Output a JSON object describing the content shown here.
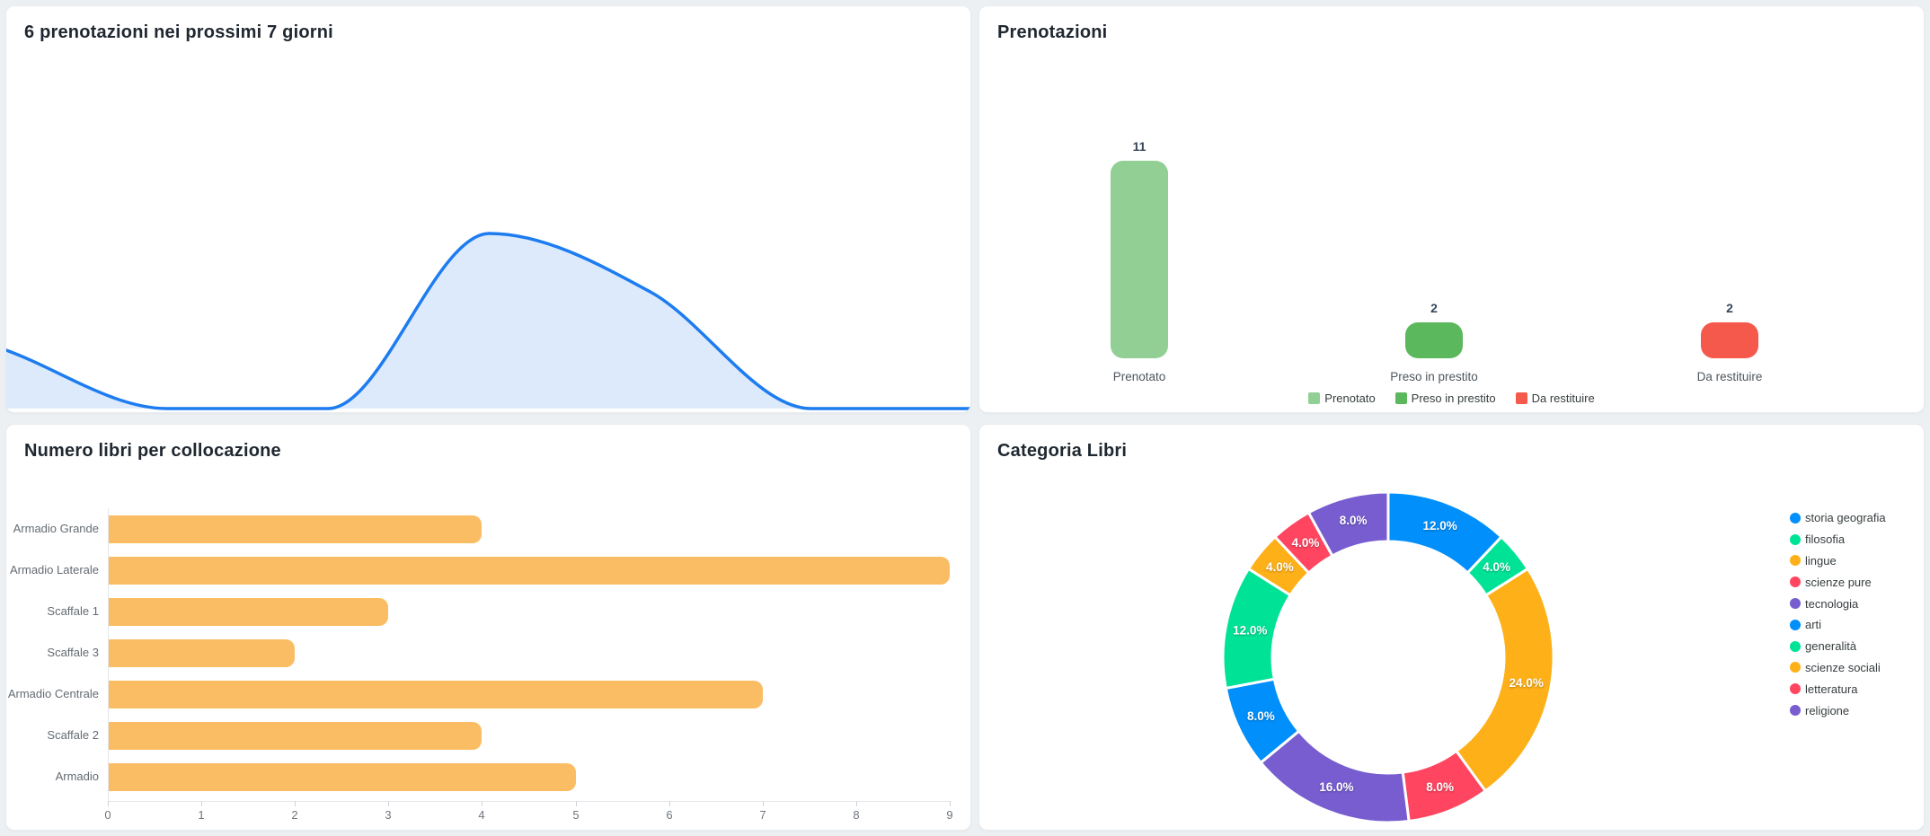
{
  "panels": {
    "forecast": {
      "title": "6 prenotazioni nei prossimi 7 giorni"
    },
    "bookings": {
      "title": "Prenotazioni"
    },
    "locations": {
      "title": "Numero libri per collocazione"
    },
    "categories": {
      "title": "Categoria Libri"
    }
  },
  "colors": {
    "page_bg": "#edf0f3",
    "panel_bg": "#ffffff",
    "area_line": "#1d7cf0",
    "area_fill": "#dceafb",
    "location_bar": "#fabd64",
    "booking_bars": [
      "#92cf94",
      "#5cb85c",
      "#f4594c"
    ],
    "donut_palette": [
      "#008FFB",
      "#00E396",
      "#FEB019",
      "#FF4560",
      "#775DD0"
    ]
  },
  "chart_data": [
    {
      "id": "forecast_area",
      "type": "area",
      "title": "6 prenotazioni nei prossimi 7 giorni",
      "x": [
        1,
        2,
        3,
        4,
        5,
        6,
        7
      ],
      "values": [
        1,
        0,
        0,
        3,
        2,
        0,
        0
      ],
      "ylim": [
        0,
        6
      ],
      "grid": false,
      "axes_visible": false,
      "legend_position": "none"
    },
    {
      "id": "bookings_bar",
      "type": "bar",
      "title": "Prenotazioni",
      "categories": [
        "Prenotato",
        "Preso in prestito",
        "Da restituire"
      ],
      "values": [
        11,
        2,
        2
      ],
      "value_labels": [
        "11",
        "2",
        "2"
      ],
      "ylim": [
        0,
        11
      ],
      "grid": false,
      "legend": [
        "Prenotato",
        "Preso in prestito",
        "Da restituire"
      ],
      "legend_position": "bottom"
    },
    {
      "id": "locations_bar",
      "type": "bar",
      "orientation": "horizontal",
      "title": "Numero libri per collocazione",
      "categories": [
        "Armadio Grande",
        "Armadio Laterale",
        "Scaffale 1",
        "Scaffale 3",
        "Armadio Centrale",
        "Scaffale 2",
        "Armadio"
      ],
      "values": [
        4,
        9,
        3,
        2,
        7,
        4,
        5
      ],
      "xlim": [
        0,
        9
      ],
      "xticks": [
        "0",
        "1",
        "2",
        "3",
        "4",
        "5",
        "6",
        "7",
        "8",
        "9"
      ],
      "grid": false,
      "legend_position": "none"
    },
    {
      "id": "categories_donut",
      "type": "pie",
      "subtype": "donut",
      "title": "Categoria Libri",
      "labels": [
        "storia geografia",
        "filosofia",
        "lingue",
        "scienze pure",
        "tecnologia",
        "arti",
        "generalità",
        "scienze sociali",
        "letteratura",
        "religione"
      ],
      "values": [
        12,
        4,
        24,
        8,
        16,
        8,
        12,
        4,
        4,
        8
      ],
      "slice_labels": [
        "12.0%",
        "4.0%",
        "24.0%",
        "8.0%",
        "16.0%",
        "8.0%",
        "12.0%",
        "4.0%",
        "4.0%",
        "8.0%"
      ],
      "legend_position": "right"
    }
  ]
}
